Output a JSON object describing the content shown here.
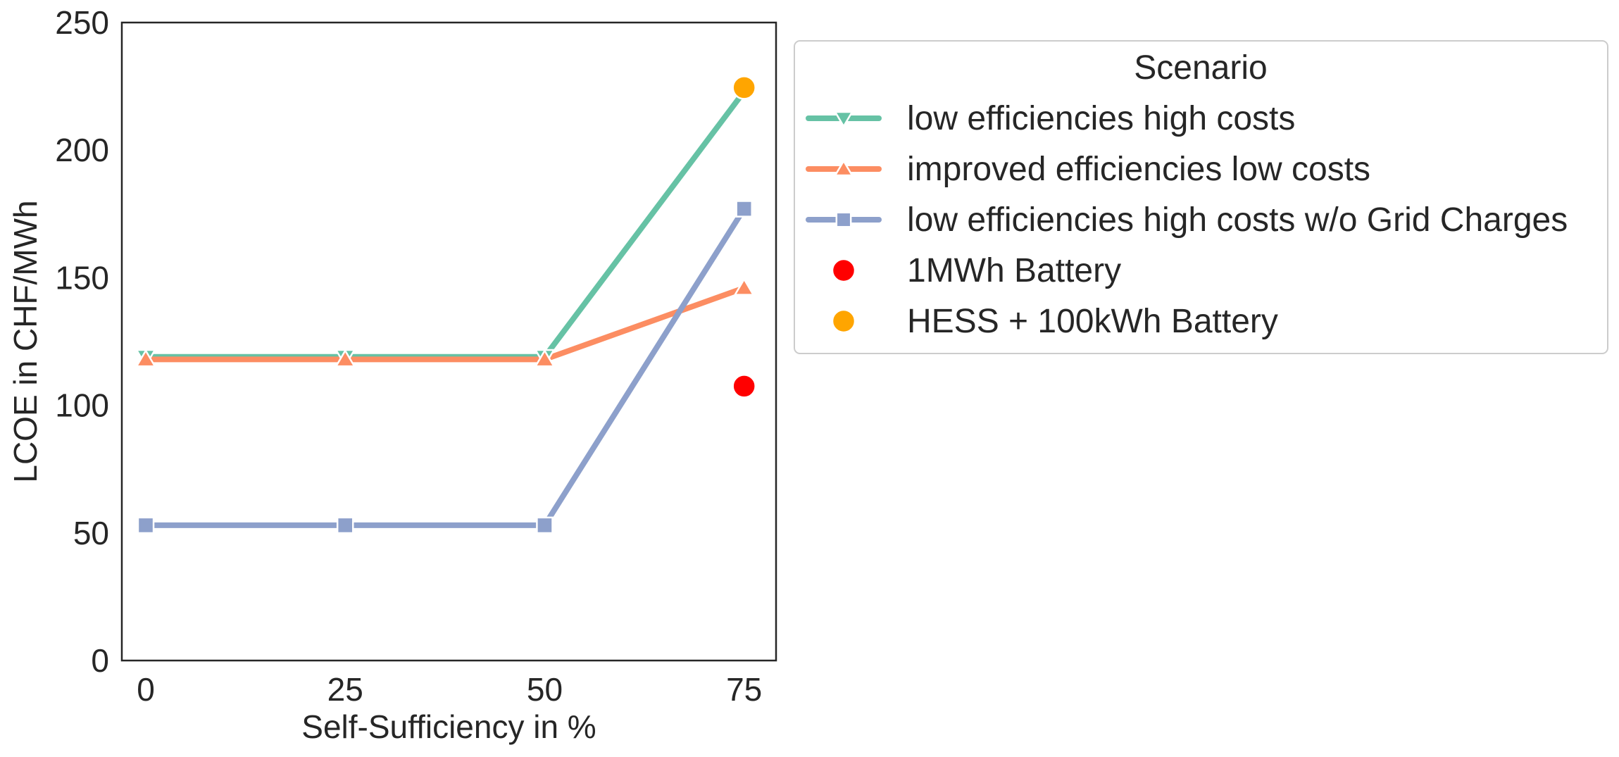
{
  "chart_data": {
    "type": "line",
    "xlabel": "Self-Sufficiency in %",
    "ylabel": "LCOE in CHF/MWh",
    "xlim": [
      -3,
      79
    ],
    "ylim": [
      0,
      250
    ],
    "x_ticks": [
      "0",
      "25",
      "50",
      "75"
    ],
    "y_ticks": [
      "0",
      "50",
      "100",
      "150",
      "200",
      "250"
    ],
    "grid": false,
    "legend": {
      "title": "Scenario",
      "placement": "outside-right"
    },
    "series": [
      {
        "name": "low efficiencies high costs",
        "kind": "line",
        "marker": "triangle-down",
        "color": "#66c2a5",
        "x": [
          0,
          25,
          50,
          75
        ],
        "y": [
          119,
          119,
          119,
          223
        ]
      },
      {
        "name": "improved efficiencies low costs",
        "kind": "line",
        "marker": "triangle-up",
        "color": "#fc8d62",
        "x": [
          0,
          25,
          50,
          75
        ],
        "y": [
          118,
          118,
          118,
          146
        ]
      },
      {
        "name": "low efficiencies high costs w/o Grid Charges",
        "kind": "line",
        "marker": "square",
        "color": "#8da0cb",
        "x": [
          0,
          25,
          50,
          75
        ],
        "y": [
          53,
          53,
          53,
          177
        ]
      },
      {
        "name": "1MWh Battery",
        "kind": "scatter",
        "marker": "circle",
        "color": "#ff0000",
        "x": [
          75
        ],
        "y": [
          107.5
        ]
      },
      {
        "name": "HESS + 100kWh Battery",
        "kind": "scatter",
        "marker": "circle",
        "color": "#ffa500",
        "x": [
          75
        ],
        "y": [
          224.5
        ]
      }
    ]
  }
}
